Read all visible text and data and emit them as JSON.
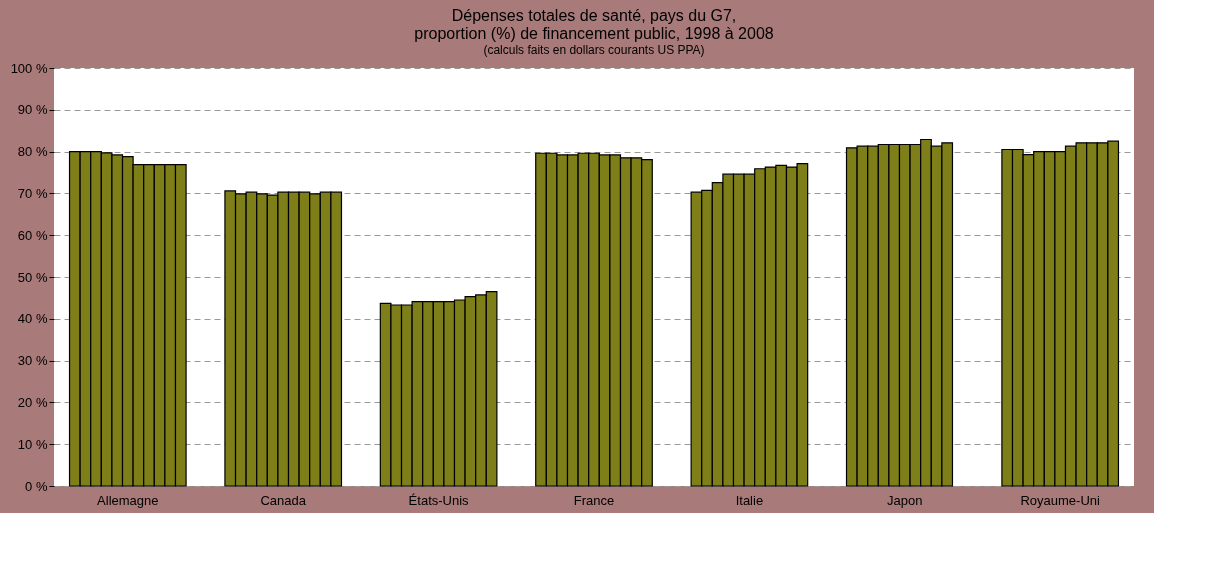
{
  "chart_data": {
    "type": "bar",
    "title": "Dépenses totales de santé, pays du G7,\nproportion (%) de financement public, 1998 à 2008",
    "subtitle": "(calculs faits en dollars courants US PPA)",
    "categories": [
      "Allemagne",
      "Canada",
      "États-Unis",
      "France",
      "Italie",
      "Japon",
      "Royaume-Uni"
    ],
    "series": [
      {
        "color": "#7f7f1a",
        "values": [
          80,
          70.6,
          43.7,
          79.6,
          70.3,
          80.9,
          80.5
        ]
      },
      {
        "color": "#7f7f1a",
        "values": [
          80,
          69.9,
          43.3,
          79.6,
          70.7,
          81.3,
          80.5
        ]
      },
      {
        "color": "#7f7f1a",
        "values": [
          80,
          70.3,
          43.3,
          79.2,
          72.6,
          81.3,
          79.3
        ]
      },
      {
        "color": "#7f7f1a",
        "values": [
          79.7,
          69.9,
          44.1,
          79.2,
          74.6,
          81.7,
          80
        ]
      },
      {
        "color": "#7f7f1a",
        "values": [
          79.2,
          69.6,
          44.1,
          79.6,
          74.6,
          81.7,
          80
        ]
      },
      {
        "color": "#7f7f1a",
        "values": [
          78.8,
          70.3,
          44.1,
          79.6,
          74.6,
          81.7,
          80
        ]
      },
      {
        "color": "#7f7f1a",
        "values": [
          76.9,
          70.3,
          44.1,
          79.2,
          75.9,
          81.7,
          81.3
        ]
      },
      {
        "color": "#7f7f1a",
        "values": [
          76.9,
          70.3,
          44.5,
          79.2,
          76.3,
          82.9,
          82.1
        ]
      },
      {
        "color": "#7f7f1a",
        "values": [
          76.9,
          69.9,
          45.3,
          78.5,
          76.7,
          81.3,
          82.1
        ]
      },
      {
        "color": "#7f7f1a",
        "values": [
          76.9,
          70.3,
          45.7,
          78.5,
          76.3,
          82.1,
          82.1
        ]
      },
      {
        "color": "#7f7f1a",
        "values": [
          76.9,
          70.3,
          46.5,
          78.1,
          77.1,
          null,
          82.5
        ]
      }
    ],
    "ylim": [
      0,
      100
    ],
    "yticks": [
      {
        "value": 0,
        "label": "0 %"
      },
      {
        "value": 10,
        "label": "10 %"
      },
      {
        "value": 20,
        "label": "20 %"
      },
      {
        "value": 30,
        "label": "30 %"
      },
      {
        "value": 40,
        "label": "40 %"
      },
      {
        "value": 50,
        "label": "50 %"
      },
      {
        "value": 60,
        "label": "60 %"
      },
      {
        "value": 70,
        "label": "70 %"
      },
      {
        "value": 80,
        "label": "80 %"
      },
      {
        "value": 90,
        "label": "90 %"
      },
      {
        "value": 100,
        "label": "100 %"
      }
    ],
    "grid": "y",
    "legend": false
  }
}
